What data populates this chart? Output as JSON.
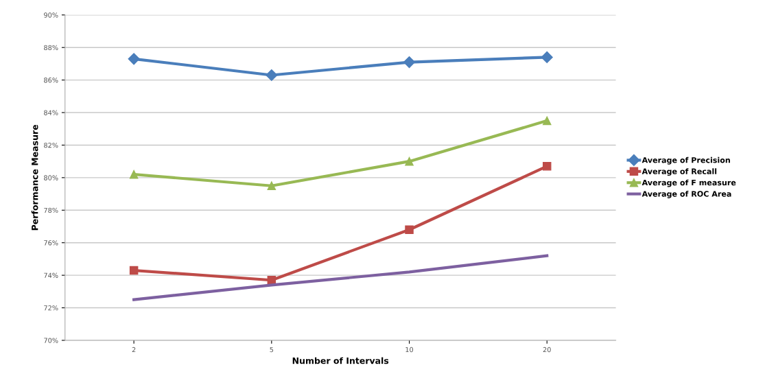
{
  "chart_data": {
    "type": "line",
    "xlabel": "Number of Intervals",
    "ylabel": "Performance Measure",
    "categories": [
      "2",
      "5",
      "10",
      "20"
    ],
    "series": [
      {
        "name": "Average of Precision",
        "color": "#4a7ebb",
        "marker": "diamond",
        "values": [
          87.3,
          86.3,
          87.1,
          87.4
        ]
      },
      {
        "name": "Average of Recall",
        "color": "#be4b48",
        "marker": "square",
        "values": [
          74.3,
          73.7,
          76.8,
          80.7
        ]
      },
      {
        "name": "Average of F measure",
        "color": "#98b954",
        "marker": "triangle",
        "values": [
          80.2,
          79.5,
          81.0,
          83.5
        ]
      },
      {
        "name": "Average of ROC Area",
        "color": "#7d60a0",
        "marker": "none",
        "values": [
          72.5,
          73.4,
          74.2,
          75.2
        ]
      }
    ],
    "ylim": [
      70,
      90
    ],
    "yticks": [
      {
        "value": 70,
        "label": "70%"
      },
      {
        "value": 72,
        "label": "72%"
      },
      {
        "value": 74,
        "label": "74%"
      },
      {
        "value": 76,
        "label": "76%"
      },
      {
        "value": 78,
        "label": "78%"
      },
      {
        "value": 80,
        "label": "80%"
      },
      {
        "value": 82,
        "label": "82%"
      },
      {
        "value": 84,
        "label": "84%"
      },
      {
        "value": 86,
        "label": "86%"
      },
      {
        "value": 88,
        "label": "88%"
      },
      {
        "value": 90,
        "label": "90%"
      }
    ],
    "grid": "y",
    "legend": "right",
    "line_style": "solid"
  }
}
